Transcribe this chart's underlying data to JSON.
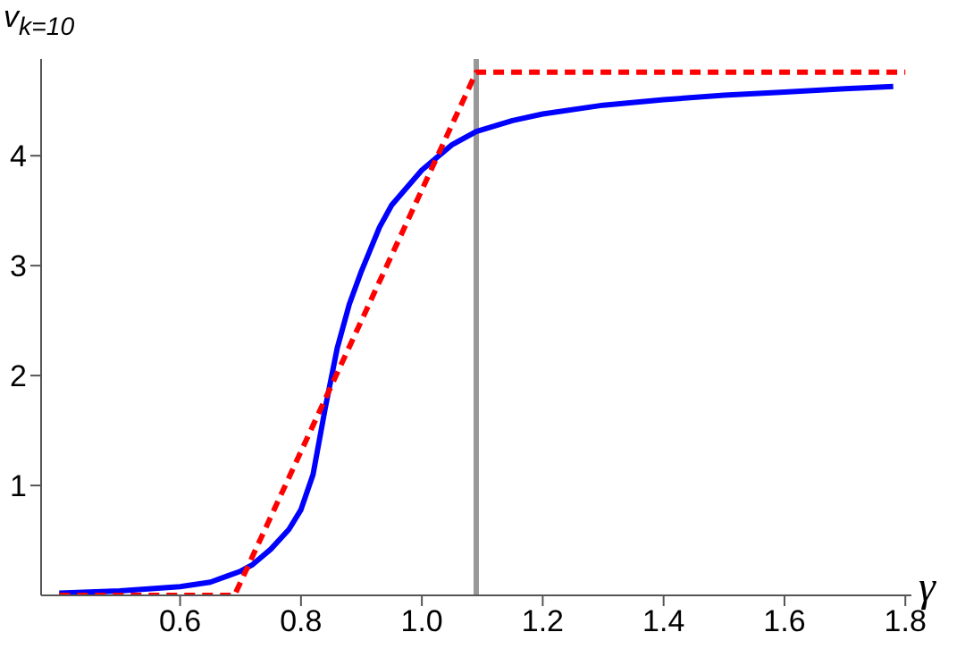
{
  "chart_data": {
    "type": "line",
    "xlabel": "γ",
    "ylabel": "v$_{k=10}$",
    "xlim": [
      0.37,
      1.81
    ],
    "ylim": [
      0,
      4.88
    ],
    "xticks": [
      0.6,
      0.8,
      {
        "value": 1,
        "label": "1.0"
      },
      1.2,
      1.4,
      1.6,
      1.8
    ],
    "yticks": [
      1,
      2,
      3,
      4
    ],
    "grid": false,
    "legend": false,
    "marker": "none",
    "series": [
      {
        "color": "#0000ff",
        "line_style": "solid",
        "x": [
          0.4,
          0.5,
          0.6,
          0.65,
          0.7,
          0.72,
          0.75,
          0.78,
          0.8,
          0.82,
          0.84,
          0.86,
          0.88,
          0.9,
          0.93,
          0.95,
          1.0,
          1.05,
          1.09,
          1.15,
          1.2,
          1.3,
          1.4,
          1.5,
          1.6,
          1.7,
          1.78
        ],
        "values": [
          0.02,
          0.04,
          0.08,
          0.12,
          0.22,
          0.28,
          0.42,
          0.6,
          0.78,
          1.1,
          1.7,
          2.25,
          2.65,
          2.95,
          3.35,
          3.55,
          3.87,
          4.1,
          4.22,
          4.32,
          4.38,
          4.46,
          4.51,
          4.55,
          4.58,
          4.61,
          4.63
        ]
      },
      {
        "color": "#ff0000",
        "line_style": "dashed",
        "x": [
          0.4,
          0.69,
          1.09,
          1.8
        ],
        "values": [
          0,
          0,
          4.76,
          4.76
        ]
      }
    ],
    "ref_lines": [
      {
        "axis": "x",
        "value": 1.09,
        "color": "#999999"
      }
    ]
  }
}
